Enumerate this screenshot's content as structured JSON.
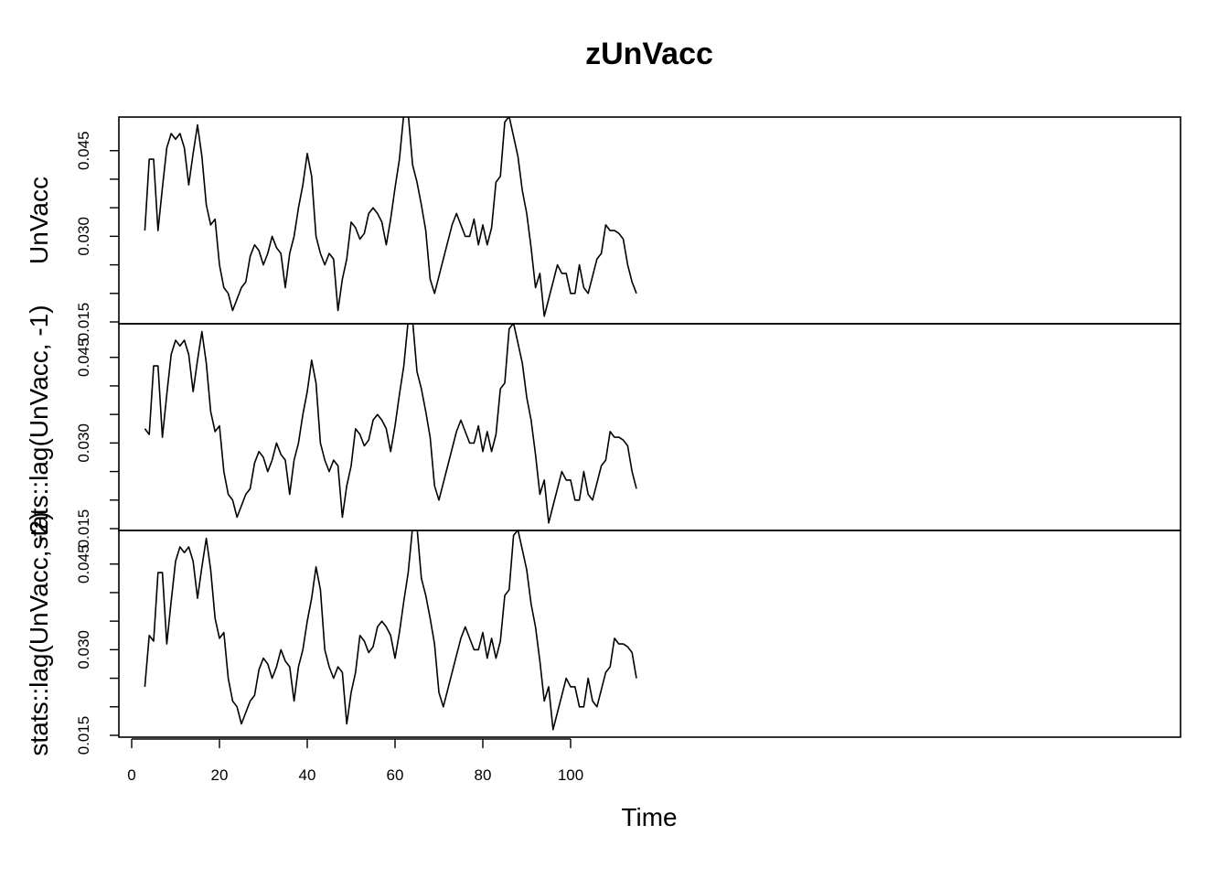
{
  "chart_data": {
    "type": "line",
    "title": "zUnVacc",
    "xlabel": "Time",
    "x_start": 3,
    "xlim": [
      0,
      120
    ],
    "xticks": [
      0,
      20,
      40,
      60,
      80,
      100
    ],
    "ylim": [
      0.015,
      0.0485
    ],
    "yticks": [
      0.015,
      0.02,
      0.025,
      0.03,
      0.035,
      0.04,
      0.045
    ],
    "ytick_labels": [
      "0.015",
      "",
      "",
      "0.030",
      "",
      "",
      "0.045"
    ],
    "grid": false,
    "legend": "none",
    "line_color": "#000000",
    "panels": [
      {
        "ylabel": "UnVacc",
        "x_start": 3,
        "values": [
          0.031,
          0.0435,
          0.0435,
          0.031,
          0.0385,
          0.0455,
          0.048,
          0.047,
          0.048,
          0.0455,
          0.039,
          0.0445,
          0.0495,
          0.044,
          0.0355,
          0.032,
          0.033,
          0.025,
          0.021,
          0.02,
          0.017,
          0.019,
          0.021,
          0.022,
          0.0265,
          0.0285,
          0.0275,
          0.025,
          0.027,
          0.03,
          0.028,
          0.027,
          0.021,
          0.027,
          0.03,
          0.035,
          0.039,
          0.0445,
          0.0405,
          0.03,
          0.027,
          0.025,
          0.027,
          0.026,
          0.017,
          0.0225,
          0.026,
          0.0325,
          0.0315,
          0.0295,
          0.0305,
          0.034,
          0.035,
          0.034,
          0.0325,
          0.0285,
          0.033,
          0.0385,
          0.0435,
          0.0515,
          0.0515,
          0.0425,
          0.0395,
          0.0355,
          0.031,
          0.0225,
          0.02,
          0.023,
          0.026,
          0.029,
          0.032,
          0.034,
          0.032,
          0.03,
          0.03,
          0.033,
          0.0285,
          0.032,
          0.0285,
          0.0315,
          0.0395,
          0.0405,
          0.05,
          0.051,
          0.0475,
          0.044,
          0.038,
          0.034,
          0.028,
          0.021,
          0.0235,
          0.016,
          0.019,
          0.022,
          0.025,
          0.0235,
          0.0235,
          0.02,
          0.02,
          0.025,
          0.021,
          0.02,
          0.023,
          0.026,
          0.027,
          0.032,
          0.031,
          0.031,
          0.0305,
          0.0295,
          0.025,
          0.022,
          0.02
        ]
      },
      {
        "ylabel": "stats::lag(UnVacc, -1)",
        "x_start": 3,
        "values": [
          0.0325,
          0.0315,
          0.0435,
          0.0435,
          0.031,
          0.0385,
          0.0455,
          0.048,
          0.047,
          0.048,
          0.0455,
          0.039,
          0.0445,
          0.0495,
          0.044,
          0.0355,
          0.032,
          0.033,
          0.025,
          0.021,
          0.02,
          0.017,
          0.019,
          0.021,
          0.022,
          0.0265,
          0.0285,
          0.0275,
          0.025,
          0.027,
          0.03,
          0.028,
          0.027,
          0.021,
          0.027,
          0.03,
          0.035,
          0.039,
          0.0445,
          0.0405,
          0.03,
          0.027,
          0.025,
          0.027,
          0.026,
          0.017,
          0.0225,
          0.026,
          0.0325,
          0.0315,
          0.0295,
          0.0305,
          0.034,
          0.035,
          0.034,
          0.0325,
          0.0285,
          0.033,
          0.0385,
          0.0435,
          0.0515,
          0.0515,
          0.0425,
          0.0395,
          0.0355,
          0.031,
          0.0225,
          0.02,
          0.023,
          0.026,
          0.029,
          0.032,
          0.034,
          0.032,
          0.03,
          0.03,
          0.033,
          0.0285,
          0.032,
          0.0285,
          0.0315,
          0.0395,
          0.0405,
          0.05,
          0.051,
          0.0475,
          0.044,
          0.038,
          0.034,
          0.028,
          0.021,
          0.0235,
          0.016,
          0.019,
          0.022,
          0.025,
          0.0235,
          0.0235,
          0.02,
          0.02,
          0.025,
          0.021,
          0.02,
          0.023,
          0.026,
          0.027,
          0.032,
          0.031,
          0.031,
          0.0305,
          0.0295,
          0.025,
          0.022
        ]
      },
      {
        "ylabel": "stats::lag(UnVacc, -2)",
        "x_start": 3,
        "values": [
          0.0235,
          0.0325,
          0.0315,
          0.0435,
          0.0435,
          0.031,
          0.0385,
          0.0455,
          0.048,
          0.047,
          0.048,
          0.0455,
          0.039,
          0.0445,
          0.0495,
          0.044,
          0.0355,
          0.032,
          0.033,
          0.025,
          0.021,
          0.02,
          0.017,
          0.019,
          0.021,
          0.022,
          0.0265,
          0.0285,
          0.0275,
          0.025,
          0.027,
          0.03,
          0.028,
          0.027,
          0.021,
          0.027,
          0.03,
          0.035,
          0.039,
          0.0445,
          0.0405,
          0.03,
          0.027,
          0.025,
          0.027,
          0.026,
          0.017,
          0.0225,
          0.026,
          0.0325,
          0.0315,
          0.0295,
          0.0305,
          0.034,
          0.035,
          0.034,
          0.0325,
          0.0285,
          0.033,
          0.0385,
          0.0435,
          0.0515,
          0.0515,
          0.0425,
          0.0395,
          0.0355,
          0.031,
          0.0225,
          0.02,
          0.023,
          0.026,
          0.029,
          0.032,
          0.034,
          0.032,
          0.03,
          0.03,
          0.033,
          0.0285,
          0.032,
          0.0285,
          0.0315,
          0.0395,
          0.0405,
          0.05,
          0.051,
          0.0475,
          0.044,
          0.038,
          0.034,
          0.028,
          0.021,
          0.0235,
          0.016,
          0.019,
          0.022,
          0.025,
          0.0235,
          0.0235,
          0.02,
          0.02,
          0.025,
          0.021,
          0.02,
          0.023,
          0.026,
          0.027,
          0.032,
          0.031,
          0.031,
          0.0305,
          0.0295,
          0.025
        ]
      }
    ]
  }
}
